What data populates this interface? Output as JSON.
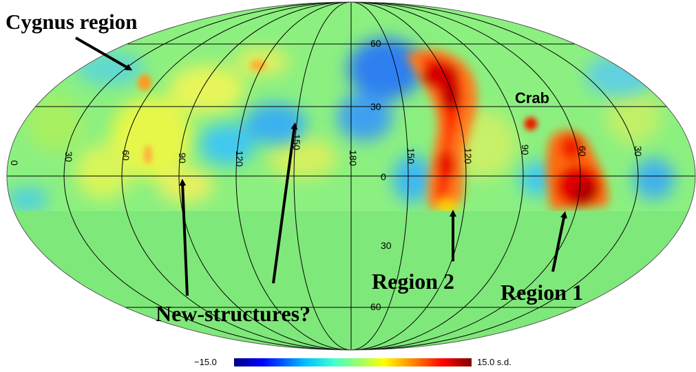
{
  "annotations": {
    "cygnus": "Cygnus region",
    "crab": "Crab",
    "region2": "Region 2",
    "region1": "Region 1",
    "new_structures": "New-structures?"
  },
  "longitude_labels": [
    "0",
    "30",
    "60",
    "90",
    "120",
    "150",
    "180",
    "150",
    "120",
    "90",
    "60",
    "30"
  ],
  "latitude_labels": [
    "60",
    "30",
    "0",
    "30",
    "60"
  ],
  "colorbar": {
    "min_label": "−15.0",
    "max_label": "15.0 s.d.",
    "colors": [
      "#00007f",
      "#0000ff",
      "#007fff",
      "#00ffff",
      "#7fff7f",
      "#ffff00",
      "#ff7f00",
      "#ff0000",
      "#7f0000"
    ]
  },
  "map": {
    "background_color": "#7fe87a",
    "projection": "Aitoff-Hammer (all-sky)",
    "scale": "significance"
  }
}
